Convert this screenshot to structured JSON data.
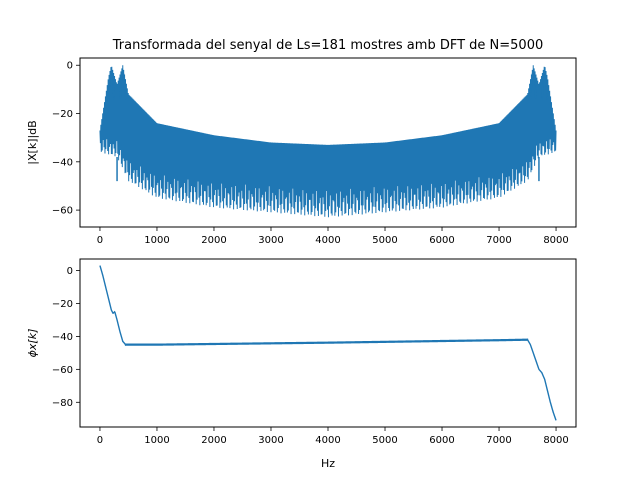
{
  "chart_data": [
    {
      "type": "line",
      "title": "Transformada del senyal de Ls=181 mostres amb DFT de N=5000",
      "xlabel": "",
      "ylabel": "|X[k]|dB",
      "xlim": [
        -350,
        8350
      ],
      "ylim": [
        -67,
        3
      ],
      "xticks": [
        0,
        1000,
        2000,
        3000,
        4000,
        5000,
        6000,
        7000,
        8000
      ],
      "yticks": [
        0,
        -20,
        -40,
        -60
      ],
      "grid": false,
      "line_color": "#1f77b4",
      "peaks_hz": [
        200,
        400,
        7600,
        7800
      ],
      "peak_value_db": 0,
      "upper_envelope_db": [
        [
          0,
          -27
        ],
        [
          150,
          -5
        ],
        [
          200,
          0
        ],
        [
          300,
          -8
        ],
        [
          400,
          0
        ],
        [
          500,
          -12
        ],
        [
          1000,
          -24
        ],
        [
          2000,
          -29
        ],
        [
          3000,
          -32
        ],
        [
          4000,
          -33
        ],
        [
          5000,
          -32
        ],
        [
          6000,
          -29
        ],
        [
          7000,
          -24
        ],
        [
          7500,
          -12
        ],
        [
          7600,
          0
        ],
        [
          7700,
          -8
        ],
        [
          7800,
          0
        ],
        [
          7850,
          -5
        ],
        [
          8000,
          -27
        ]
      ],
      "lower_envelope_db": [
        [
          0,
          -36
        ],
        [
          300,
          -38
        ],
        [
          500,
          -48
        ],
        [
          1000,
          -55
        ],
        [
          2000,
          -59
        ],
        [
          3000,
          -61
        ],
        [
          4000,
          -63
        ],
        [
          5000,
          -61
        ],
        [
          6000,
          -59
        ],
        [
          7000,
          -55
        ],
        [
          7500,
          -48
        ],
        [
          7700,
          -38
        ],
        [
          8000,
          -36
        ]
      ],
      "dip_points_db": [
        [
          300,
          -48
        ],
        [
          7700,
          -48
        ]
      ]
    },
    {
      "type": "line",
      "title": "",
      "xlabel": "Hz",
      "ylabel": "ϕx[k]",
      "xlim": [
        -350,
        8350
      ],
      "ylim": [
        -95,
        7
      ],
      "xticks": [
        0,
        1000,
        2000,
        3000,
        4000,
        5000,
        6000,
        7000,
        8000
      ],
      "yticks": [
        0,
        -20,
        -40,
        -60,
        -80
      ],
      "grid": false,
      "line_color": "#1f77b4",
      "x": [
        0,
        50,
        100,
        150,
        200,
        230,
        260,
        300,
        350,
        400,
        450,
        500,
        1000,
        2000,
        3000,
        4000,
        5000,
        6000,
        7000,
        7500,
        7550,
        7600,
        7650,
        7700,
        7750,
        7800,
        7850,
        7900,
        7950,
        8000
      ],
      "y": [
        3,
        -3,
        -10,
        -17,
        -24,
        -26,
        -25,
        -30,
        -37,
        -43,
        -45,
        -45,
        -45,
        -44.6,
        -44.2,
        -43.8,
        -43.3,
        -42.8,
        -42.3,
        -42,
        -45,
        -50,
        -55,
        -60,
        -62,
        -66,
        -73,
        -80,
        -86,
        -91
      ],
      "ripple_amplitude": 1.2
    }
  ]
}
